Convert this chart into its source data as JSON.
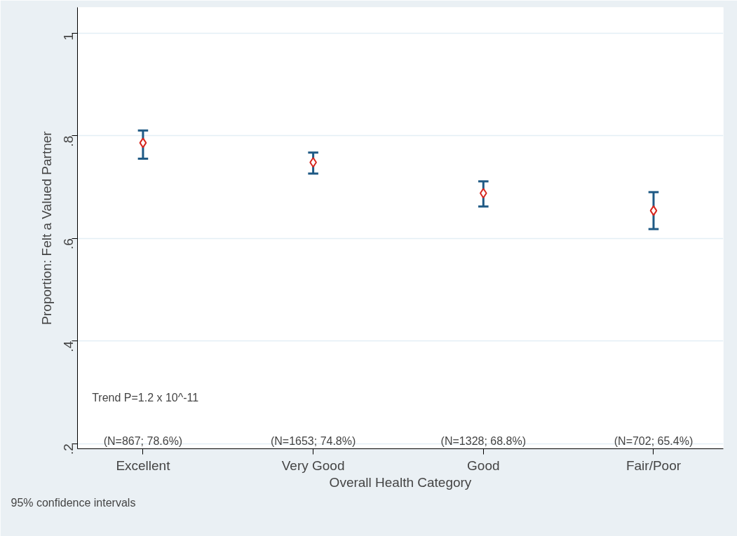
{
  "chart_data": {
    "type": "scatter",
    "ylabel": "Proportion: Felt a Valued Partner",
    "xlabel": "Overall Health Category",
    "categories": [
      "Excellent",
      "Very Good",
      "Good",
      "Fair/Poor"
    ],
    "values": [
      0.786,
      0.748,
      0.688,
      0.654
    ],
    "errors": [
      [
        0.755,
        0.81
      ],
      [
        0.726,
        0.767
      ],
      [
        0.662,
        0.711
      ],
      [
        0.618,
        0.69
      ]
    ],
    "color": "#d7261e",
    "marker": "diamond",
    "ylim": [
      0.19,
      1.05
    ],
    "yticks": [
      {
        "value": 0.2,
        "label": ".2"
      },
      {
        "value": 0.4,
        "label": ".4"
      },
      {
        "value": 0.6,
        "label": ".6"
      },
      {
        "value": 0.8,
        "label": ".8"
      },
      {
        "value": 1,
        "label": "1"
      }
    ],
    "grid": "y",
    "annotations": [
      "Trend P=1.2 x 10^-11",
      "95% confidence intervals",
      "(N=867; 78.6%)",
      "(N=1653; 74.8%)",
      "(N=1328; 68.8%)",
      "(N=702; 65.4%)"
    ]
  }
}
